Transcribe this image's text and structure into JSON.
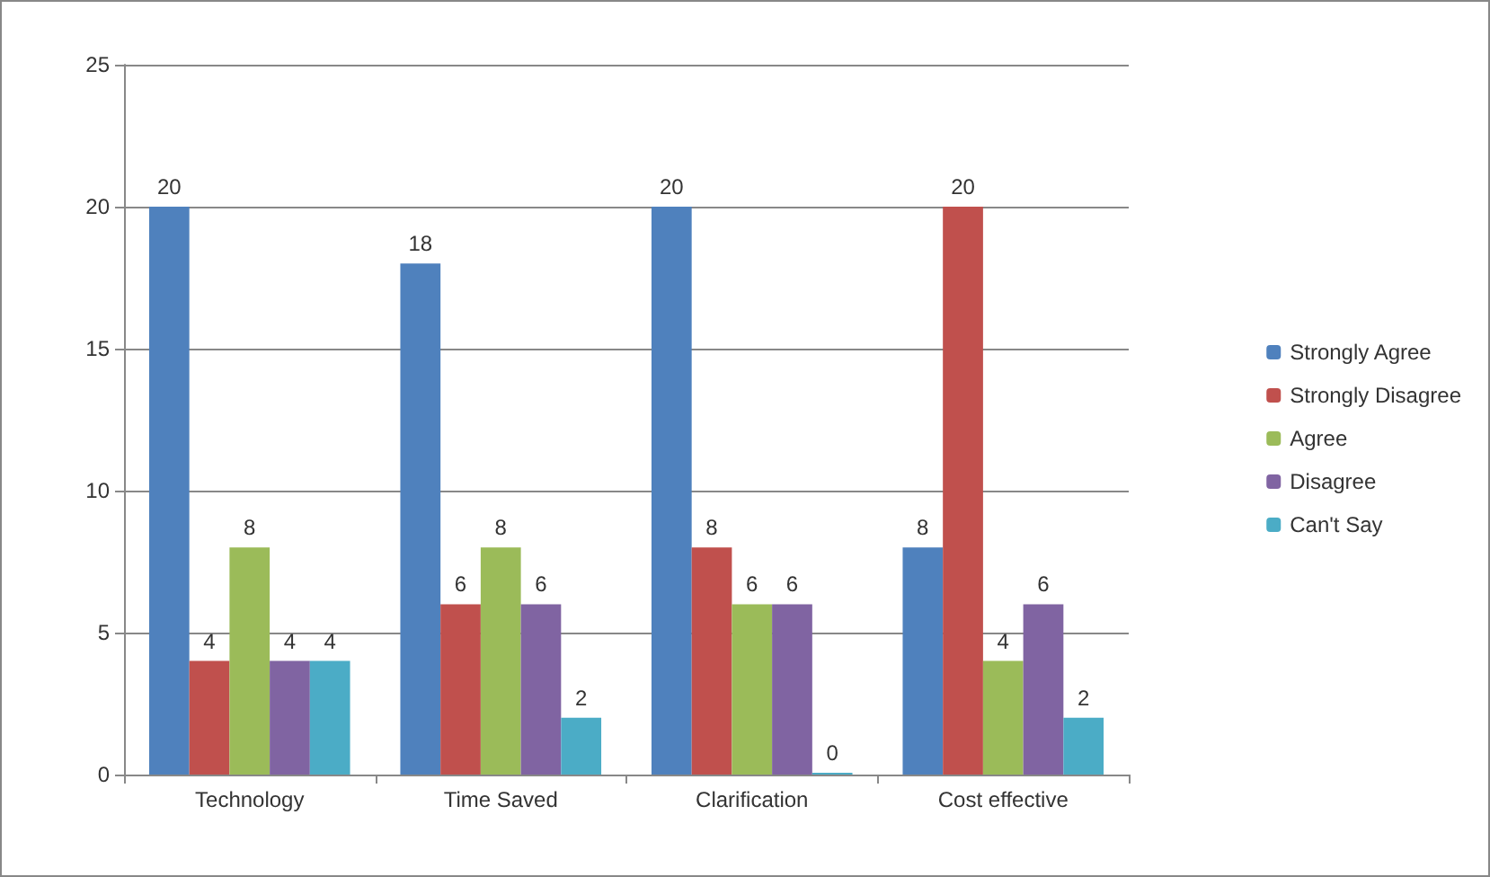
{
  "chart_data": {
    "type": "bar",
    "categories": [
      "Technology",
      "Time Saved",
      "Clarification",
      "Cost effective"
    ],
    "series": [
      {
        "name": "Strongly Agree",
        "color": "#4f81bd",
        "values": [
          20,
          18,
          20,
          8
        ]
      },
      {
        "name": "Strongly Disagree",
        "color": "#c0504d",
        "values": [
          4,
          6,
          8,
          20
        ]
      },
      {
        "name": "Agree",
        "color": "#9bbb59",
        "values": [
          8,
          8,
          6,
          4
        ]
      },
      {
        "name": "Disagree",
        "color": "#8064a2",
        "values": [
          4,
          6,
          6,
          6
        ]
      },
      {
        "name": "Can't Say",
        "color": "#4bacc6",
        "values": [
          4,
          2,
          0,
          2
        ]
      }
    ],
    "ylim": [
      0,
      25
    ],
    "yticks": [
      0,
      5,
      10,
      15,
      20,
      25
    ],
    "grid": "y",
    "legend": "right",
    "data_labels": true
  }
}
